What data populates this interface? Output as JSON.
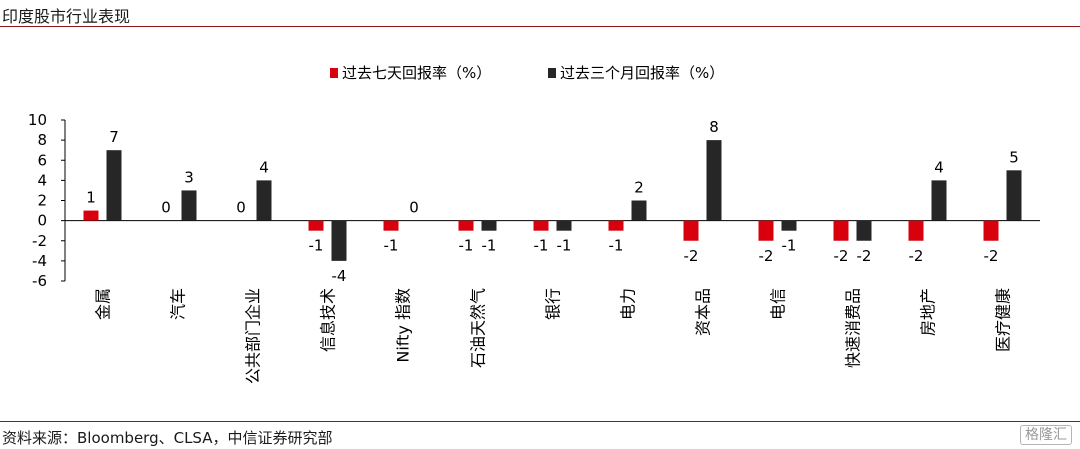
{
  "page": {
    "title": "印度股市行业表现",
    "source": "资料来源：Bloomberg、CLSA，中信证券研究部",
    "watermark": "格隆汇"
  },
  "colors": {
    "series1": "#d9000d",
    "series2": "#262626",
    "axis": "#000000",
    "rule": "#8c1b1b"
  },
  "chart_data": {
    "type": "bar",
    "title": "",
    "xlabel": "",
    "ylabel": "",
    "ylim": [
      -6,
      10
    ],
    "yticks": [
      10,
      8,
      6,
      4,
      2,
      0,
      -2,
      -4,
      -6
    ],
    "grid": false,
    "legend_position": "top-center",
    "categories": [
      "金属",
      "汽车",
      "公共部门企业",
      "信息技术",
      "Nifty 指数",
      "石油天然气",
      "银行",
      "电力",
      "资本品",
      "电信",
      "快速消费品",
      "房地产",
      "医疗健康"
    ],
    "series": [
      {
        "name": "过去七天回报率（%）",
        "values": [
          1,
          0,
          0,
          -1,
          -1,
          -1,
          -1,
          -1,
          -2,
          -2,
          -2,
          -2,
          -2
        ]
      },
      {
        "name": "过去三个月回报率（%）",
        "values": [
          7,
          3,
          4,
          -4,
          0,
          -1,
          -1,
          2,
          8,
          -1,
          -2,
          4,
          5
        ]
      }
    ]
  }
}
